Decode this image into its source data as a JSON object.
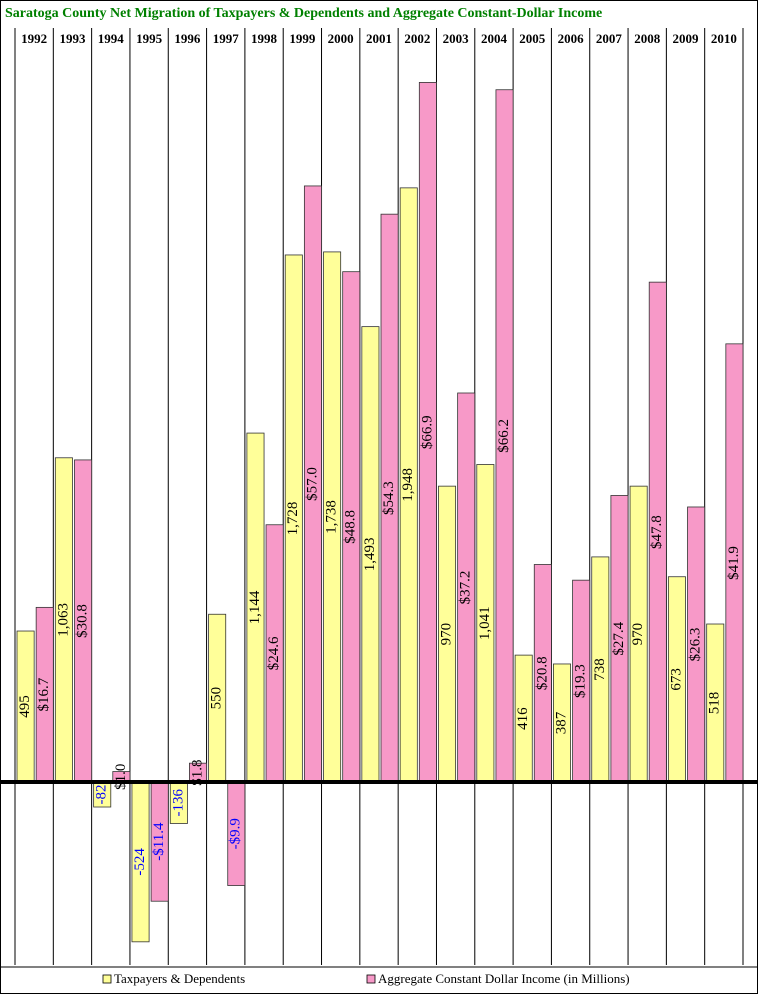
{
  "chart_data": {
    "type": "bar",
    "title": "Saratoga County  Net Migration of Taxpayers & Dependents and Aggregate Constant-Dollar  Income",
    "categories": [
      "1992",
      "1993",
      "1994",
      "1995",
      "1996",
      "1997",
      "1998",
      "1999",
      "2000",
      "2001",
      "2002",
      "2003",
      "2004",
      "2005",
      "2006",
      "2007",
      "2008",
      "2009",
      "2010"
    ],
    "series": [
      {
        "name": "Taxpayers & Dependents",
        "color": "#ffff99",
        "values": [
          495,
          1063,
          -82,
          -524,
          -136,
          550,
          1144,
          1728,
          1738,
          1493,
          1948,
          970,
          1041,
          416,
          387,
          738,
          970,
          673,
          518
        ],
        "value_labels": [
          "495",
          "1,063",
          "-82",
          "-524",
          "-136",
          "550",
          "1,144",
          "1,728",
          "1,738",
          "1,493",
          "1,948",
          "970",
          "1,041",
          "416",
          "387",
          "738",
          "970",
          "673",
          "518"
        ]
      },
      {
        "name": "Aggregate Constant Dollar Income (in Millions)",
        "color": "#f799c8",
        "axis": "y2",
        "values": [
          16.7,
          30.8,
          1.0,
          -11.4,
          1.8,
          -9.9,
          24.6,
          57.0,
          48.8,
          54.3,
          66.9,
          37.2,
          66.2,
          20.8,
          19.3,
          27.4,
          47.8,
          26.3,
          41.9
        ],
        "value_labels": [
          "$16.7",
          "$30.8",
          "$1.0",
          "-$11.4",
          "$1.8",
          "-$9.9",
          "$24.6",
          "$57.0",
          "$48.8",
          "$54.3",
          "$66.9",
          "$37.2",
          "$66.2",
          "$20.8",
          "$19.3",
          "$27.4",
          "$47.8",
          "$26.3",
          "$41.9"
        ]
      }
    ],
    "ylim": [
      -600,
      2400
    ],
    "y2lim": [
      -17.5,
      70
    ],
    "negative_label_color": "#0000ff"
  }
}
